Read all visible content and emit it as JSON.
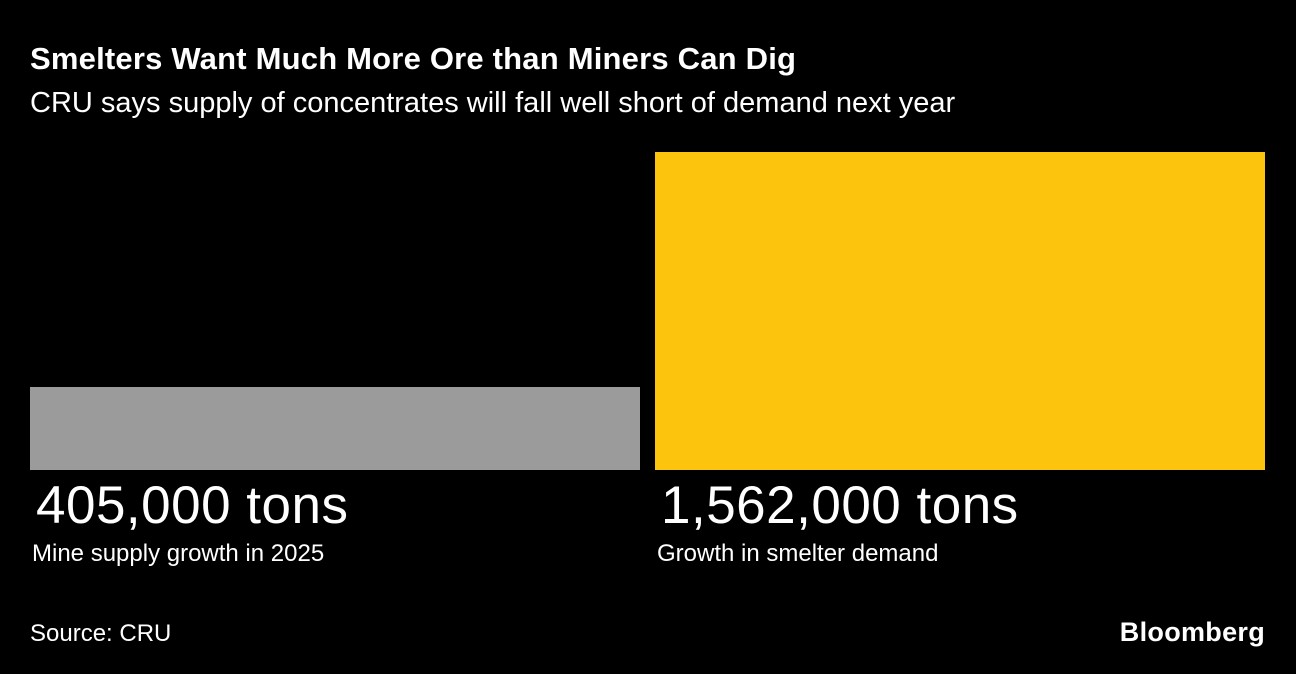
{
  "header": {
    "title": "Smelters Want Much More Ore than Miners Can Dig",
    "subtitle": "CRU says supply of concentrates will fall well short of demand next year"
  },
  "chart_data": {
    "type": "bar",
    "title": "Smelters Want Much More Ore than Miners Can Dig",
    "subtitle": "CRU says supply of concentrates will fall well short of demand next year",
    "categories": [
      "Mine supply growth in 2025",
      "Growth in smelter demand"
    ],
    "values": [
      405000,
      1562000
    ],
    "value_labels": [
      "405,000 tons",
      "1,562,000 tons"
    ],
    "colors": [
      "#9b9b9b",
      "#fdc40d"
    ],
    "ylim": [
      0,
      1562000
    ],
    "grid": false,
    "legend": "none",
    "orientation": "vertical",
    "source": "Source: CRU"
  },
  "footer": {
    "source_label": "Source: CRU",
    "brand_label": "Bloomberg"
  },
  "colors": {
    "background": "#000000",
    "text": "#ffffff",
    "bar_supply": "#9b9b9b",
    "bar_demand": "#fdc40d"
  }
}
